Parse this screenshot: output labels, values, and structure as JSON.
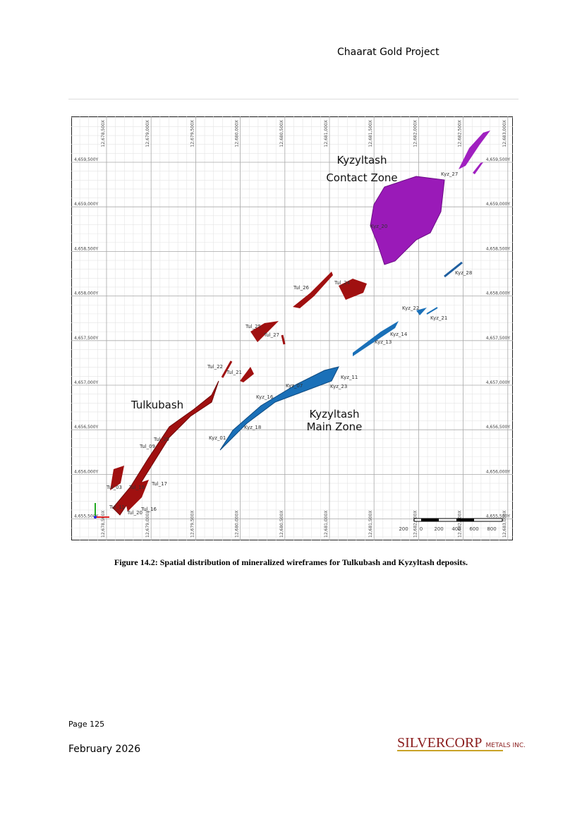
{
  "header": {
    "title": "Chaarat Gold Project"
  },
  "figure": {
    "x_labels": [
      "12,678,500X",
      "12,679,000X",
      "12,679,500X",
      "12,680,000X",
      "12,680,500X",
      "12,681,000X",
      "12,681,500X",
      "12,682,000X",
      "12,682,500X",
      "12,683,000X"
    ],
    "y_labels": [
      "4,659,500Y",
      "4,659,000Y",
      "4,658,500Y",
      "4,658,000Y",
      "4,657,500Y",
      "4,657,000Y",
      "4,656,500Y",
      "4,656,000Y",
      "4,655,500Y"
    ],
    "zones": [
      "Kyzyltash",
      "Contact Zone",
      "Tulkubash",
      "Kyzyltash",
      "Main Zone"
    ],
    "wireframes": [
      "Kyz_27",
      "Kyz_28",
      "Kyz_20",
      "Kyz_22",
      "Kyz_21",
      "Kyz_14",
      "Kyz_13",
      "Kyz_11",
      "Kyz_23",
      "Kyz_07",
      "Kyz_16",
      "Kyz_18",
      "Kyz_01",
      "Tul_26",
      "Tul_24",
      "Tul_25",
      "Tul_27",
      "Tul_22",
      "Tul_21",
      "Tul_29",
      "Tul_09",
      "Tul_03",
      "Tul_17",
      "Tul_19",
      "Tul_16",
      "Tul_20",
      "Tul_11"
    ],
    "scale_labels": [
      "200",
      "0",
      "200",
      "400",
      "600",
      "800"
    ],
    "caption": "Figure 14.2: Spatial distribution of mineralized wireframes for Tulkubash and Kyzyltash deposits."
  },
  "footer": {
    "page": "Page 125",
    "date": "February 2026",
    "logo": "SILVERCORP",
    "logo_suffix": "METALS INC."
  }
}
